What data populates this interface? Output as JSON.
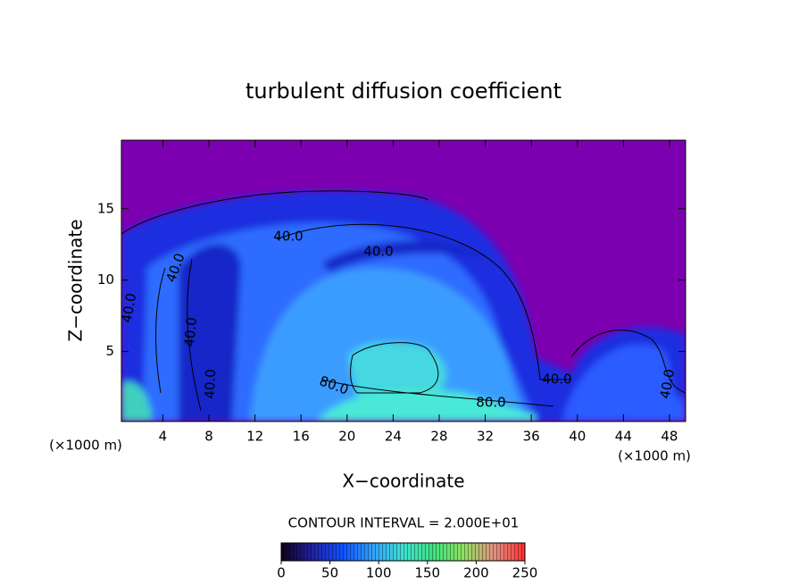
{
  "chart_data": {
    "type": "contour",
    "title": "turbulent diffusion coefficient",
    "xlabel": "X−coordinate",
    "ylabel": "Z−coordinate",
    "x_unit": "(×1000 m)",
    "xlim": [
      0.4,
      49.4
    ],
    "xticks": [
      4,
      8,
      12,
      16,
      20,
      24,
      28,
      32,
      36,
      40,
      44,
      48
    ],
    "ylim": [
      0.1,
      19.8
    ],
    "yticks": [
      5,
      10,
      15
    ],
    "contour_labels": [
      "40.0",
      "40.0",
      "40.0",
      "40.0",
      "40.0",
      "40.0",
      "40.0",
      "40.0",
      "80.0",
      "80.0"
    ],
    "contour_interval": "CONTOUR INTERVAL = 2.000E+01",
    "colorbar": {
      "lim": [
        0,
        250
      ],
      "ticks": [
        0,
        50,
        100,
        150,
        200,
        250
      ],
      "colors": [
        "#100018",
        "#2020a0",
        "#1050ff",
        "#30a0ff",
        "#40e0d0",
        "#40e080",
        "#90e060",
        "#e09080",
        "#ff3030"
      ]
    }
  }
}
